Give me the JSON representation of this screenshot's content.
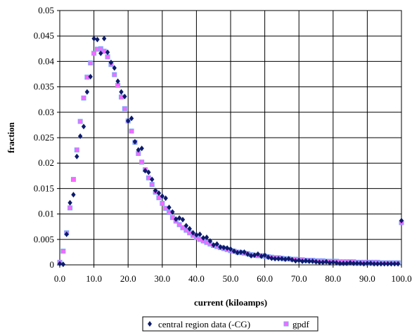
{
  "chart_data": {
    "type": "scatter",
    "xlabel": "current (kiloamps)",
    "ylabel": "fraction",
    "xlim": [
      0,
      100
    ],
    "ylim": [
      0,
      0.05
    ],
    "x_ticks": [
      "0.0",
      "10.0",
      "20.0",
      "30.0",
      "40.0",
      "50.0",
      "60.0",
      "70.0",
      "80.0",
      "90.0",
      "100.0"
    ],
    "y_ticks": [
      "0",
      "0.005",
      "0.01",
      "0.015",
      "0.02",
      "0.025",
      "0.03",
      "0.035",
      "0.04",
      "0.045",
      "0.05"
    ],
    "grid": true,
    "legend_position": "bottom-center",
    "series": [
      {
        "name": "central region data (-CG)",
        "marker": "diamond",
        "color": "#0d1b6b",
        "x": [
          0,
          1,
          2,
          3,
          4,
          5,
          6,
          7,
          8,
          9,
          10,
          11,
          12,
          13,
          14,
          15,
          16,
          17,
          18,
          19,
          20,
          21,
          22,
          23,
          24,
          25,
          26,
          27,
          28,
          29,
          30,
          31,
          32,
          33,
          34,
          35,
          36,
          37,
          38,
          39,
          40,
          41,
          42,
          43,
          44,
          45,
          46,
          47,
          48,
          49,
          50,
          51,
          52,
          53,
          54,
          55,
          56,
          57,
          58,
          59,
          60,
          61,
          62,
          63,
          64,
          65,
          66,
          67,
          68,
          69,
          70,
          71,
          72,
          73,
          74,
          75,
          76,
          77,
          78,
          79,
          80,
          81,
          82,
          83,
          84,
          85,
          86,
          87,
          88,
          89,
          90,
          91,
          92,
          93,
          94,
          95,
          96,
          97,
          98,
          99,
          100
        ],
        "y": [
          0.0002,
          0.0001,
          0.006,
          0.0122,
          0.0138,
          0.0213,
          0.0253,
          0.0272,
          0.034,
          0.037,
          0.0445,
          0.0443,
          0.0416,
          0.0445,
          0.0418,
          0.0398,
          0.0387,
          0.0361,
          0.034,
          0.0331,
          0.0283,
          0.0288,
          0.0242,
          0.0226,
          0.0229,
          0.0185,
          0.0182,
          0.0168,
          0.0146,
          0.0141,
          0.0135,
          0.0131,
          0.0113,
          0.0104,
          0.009,
          0.0092,
          0.0089,
          0.0077,
          0.0071,
          0.0063,
          0.0059,
          0.006,
          0.0053,
          0.0054,
          0.0047,
          0.0039,
          0.0041,
          0.0035,
          0.0034,
          0.0033,
          0.0031,
          0.0027,
          0.0024,
          0.0025,
          0.0025,
          0.0021,
          0.0018,
          0.0019,
          0.0021,
          0.0017,
          0.0019,
          0.0015,
          0.0013,
          0.0012,
          0.0012,
          0.0012,
          0.0011,
          0.0012,
          0.001,
          0.0008,
          0.0009,
          0.0007,
          0.0008,
          0.0007,
          0.0007,
          0.0006,
          0.0005,
          0.0005,
          0.0006,
          0.0004,
          0.0005,
          0.0004,
          0.0003,
          0.0003,
          0.0003,
          0.0004,
          0.0003,
          0.0003,
          0.0003,
          0.0002,
          0.0003,
          0.0003,
          0.0002,
          0.0002,
          0.0002,
          0.0002,
          0.0002,
          0.0002,
          0.0002,
          0.0002,
          0.0087
        ]
      },
      {
        "name": "gpdf",
        "marker": "square",
        "color": "#ff66ff",
        "x": [
          0,
          1,
          2,
          3,
          4,
          5,
          6,
          7,
          8,
          9,
          10,
          11,
          12,
          13,
          14,
          15,
          16,
          17,
          18,
          19,
          20,
          21,
          22,
          23,
          24,
          25,
          26,
          27,
          28,
          29,
          30,
          31,
          32,
          33,
          34,
          35,
          36,
          37,
          38,
          39,
          40,
          41,
          42,
          43,
          44,
          45,
          46,
          47,
          48,
          49,
          50,
          51,
          52,
          53,
          54,
          55,
          56,
          57,
          58,
          59,
          60,
          61,
          62,
          63,
          64,
          65,
          66,
          67,
          68,
          69,
          70,
          71,
          72,
          73,
          74,
          75,
          76,
          77,
          78,
          79,
          80,
          81,
          82,
          83,
          84,
          85,
          86,
          87,
          88,
          89,
          90,
          91,
          92,
          93,
          94,
          95,
          96,
          97,
          98,
          99,
          100
        ],
        "y": [
          0.0005,
          0.0027,
          0.0063,
          0.0112,
          0.0168,
          0.0226,
          0.0282,
          0.0328,
          0.0369,
          0.0397,
          0.0416,
          0.0424,
          0.0425,
          0.042,
          0.0409,
          0.0394,
          0.0374,
          0.0353,
          0.033,
          0.0307,
          0.0283,
          0.0263,
          0.0241,
          0.0219,
          0.0202,
          0.0187,
          0.0171,
          0.0158,
          0.0143,
          0.0132,
          0.0121,
          0.0111,
          0.0103,
          0.0093,
          0.0086,
          0.0079,
          0.0073,
          0.0068,
          0.0063,
          0.0058,
          0.0054,
          0.005,
          0.0047,
          0.0044,
          0.0041,
          0.0038,
          0.0036,
          0.0034,
          0.0032,
          0.003,
          0.0028,
          0.0027,
          0.0025,
          0.0024,
          0.0023,
          0.0022,
          0.002,
          0.0019,
          0.0018,
          0.0018,
          0.0017,
          0.0016,
          0.0015,
          0.0014,
          0.0014,
          0.0013,
          0.0012,
          0.0012,
          0.0011,
          0.0011,
          0.001,
          0.001,
          0.0009,
          0.0009,
          0.0009,
          0.0008,
          0.0008,
          0.0008,
          0.0007,
          0.0007,
          0.0007,
          0.0007,
          0.0006,
          0.0006,
          0.0006,
          0.0006,
          0.0006,
          0.0005,
          0.0005,
          0.0005,
          0.0005,
          0.0005,
          0.0005,
          0.0005,
          0.0004,
          0.0004,
          0.0004,
          0.0004,
          0.0004,
          0.0004,
          0.0083
        ]
      }
    ]
  }
}
